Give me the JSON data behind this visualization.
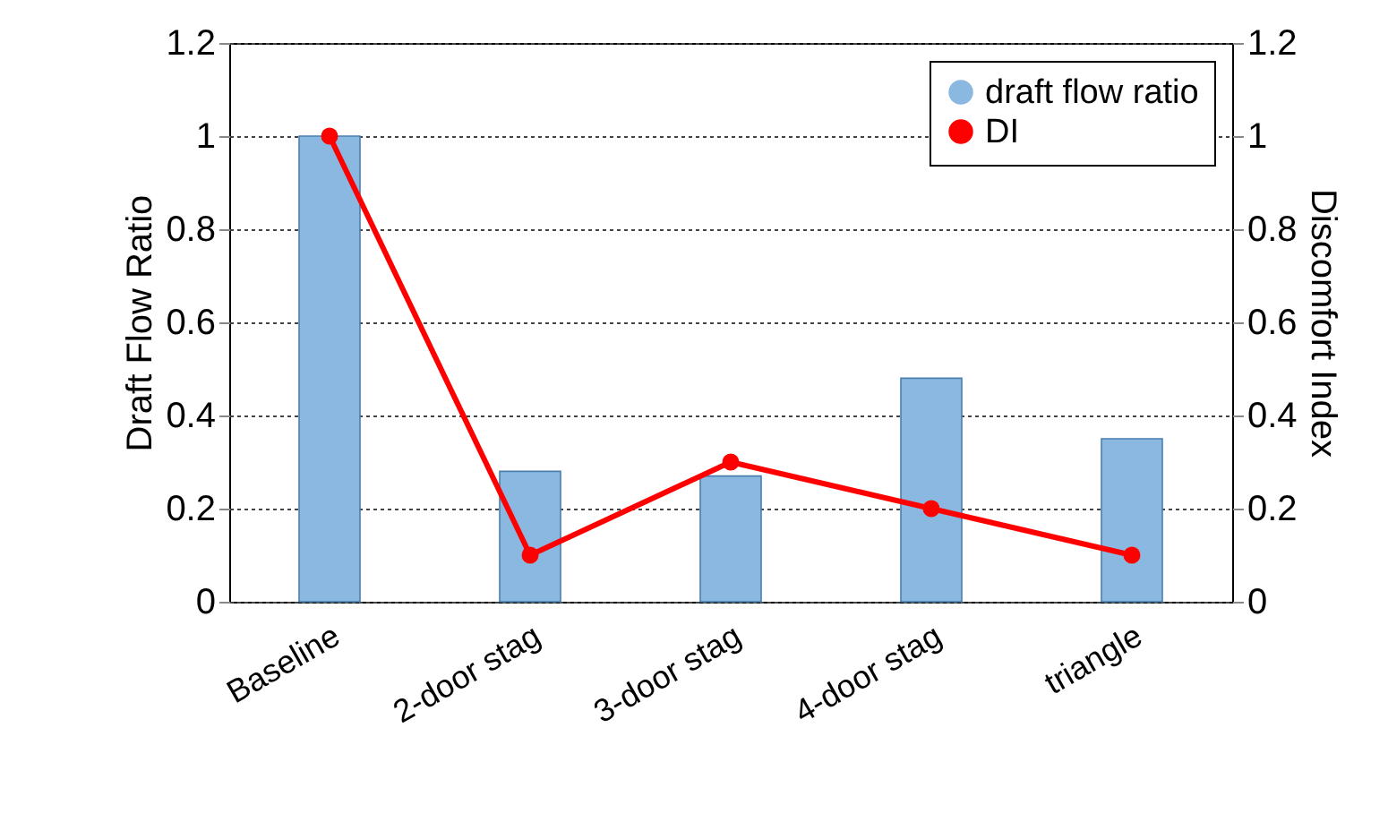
{
  "chart_data": {
    "type": "bar",
    "categories": [
      "Baseline",
      "2-door stag",
      "3-door stag",
      "4-door stag",
      "triangle"
    ],
    "ylabel": "Draft Flow Ratio",
    "y2label": "Discomfort Index",
    "series": [
      {
        "name": "draft flow ratio",
        "color": "#8ab8e0",
        "values": [
          1.0,
          0.28,
          0.27,
          0.48,
          0.35
        ]
      },
      {
        "name": "DI",
        "type": "line",
        "axis": "y2",
        "color": "#ff0000",
        "values": [
          1.0,
          0.1,
          0.3,
          0.2,
          0.1
        ]
      }
    ],
    "ylim": [
      0,
      1.2
    ],
    "yticks": [
      0,
      0.2,
      0.4,
      0.6,
      0.8,
      1,
      1.2
    ],
    "y2lim": [
      0,
      1.2
    ],
    "y2ticks": [
      0,
      0.2,
      0.4,
      0.6,
      0.8,
      1,
      1.2
    ],
    "grid": "y",
    "legend": "top right",
    "marker": "circle",
    "line_style": "solid"
  }
}
